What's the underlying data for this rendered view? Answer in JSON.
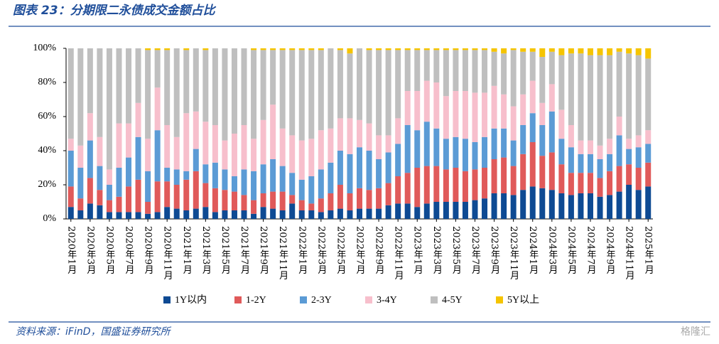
{
  "chart_data": {
    "type": "stacked_bar",
    "title": "图表 23：分期限二永债成交金额占比",
    "source": "资料来源：iFinD，国盛证券研究所",
    "watermark": "格隆汇",
    "categories": [
      "2020年1月",
      null,
      "2020年3月",
      null,
      "2020年5月",
      null,
      "2020年7月",
      null,
      "2020年9月",
      null,
      "2020年11月",
      null,
      "2021年1月",
      null,
      "2021年3月",
      null,
      "2021年5月",
      null,
      "2021年7月",
      null,
      "2021年9月",
      null,
      "2021年11月",
      null,
      "2022年1月",
      null,
      "2022年3月",
      null,
      "2022年5月",
      null,
      "2022年7月",
      null,
      "2022年9月",
      null,
      "2022年11月",
      null,
      "2023年1月",
      null,
      "2023年3月",
      null,
      "2023年5月",
      null,
      "2023年7月",
      null,
      "2023年9月",
      null,
      "2023年11月",
      null,
      "2024年1月",
      null,
      "2024年3月",
      null,
      "2024年5月",
      null,
      "2024年7月",
      null,
      "2024年9月",
      null,
      "2024年11月",
      null,
      "2025年1月"
    ],
    "ylim": [
      0,
      100
    ],
    "yticks": [
      {
        "value": 0,
        "label": "0%"
      },
      {
        "value": 20,
        "label": "20%"
      },
      {
        "value": 40,
        "label": "40%"
      },
      {
        "value": 60,
        "label": "60%"
      },
      {
        "value": 80,
        "label": "80%"
      },
      {
        "value": 100,
        "label": "100%"
      }
    ],
    "legend": "bottom",
    "series": [
      {
        "name": "1Y以内",
        "color": "#0e4a93",
        "values": [
          7,
          5,
          9,
          8,
          4,
          4,
          4,
          4,
          3,
          4,
          7,
          6,
          5,
          6,
          7,
          4,
          5,
          5,
          5,
          3,
          7,
          6,
          5,
          9,
          5,
          5,
          4,
          5,
          6,
          5,
          6,
          6,
          6,
          8,
          9,
          9,
          7,
          9,
          10,
          10,
          10,
          10,
          11,
          12,
          15,
          15,
          14,
          17,
          19,
          18,
          17,
          15,
          14,
          15,
          15,
          13,
          14,
          16,
          20,
          17,
          19
        ]
      },
      {
        "name": "1-2Y",
        "color": "#e05a5a",
        "values": [
          12,
          7,
          15,
          9,
          7,
          9,
          15,
          19,
          7,
          18,
          15,
          14,
          18,
          22,
          14,
          14,
          12,
          11,
          9,
          8,
          8,
          10,
          11,
          5,
          6,
          4,
          8,
          10,
          14,
          10,
          12,
          11,
          12,
          13,
          16,
          18,
          23,
          22,
          21,
          19,
          20,
          18,
          18,
          18,
          20,
          21,
          17,
          21,
          26,
          19,
          22,
          17,
          13,
          12,
          12,
          11,
          14,
          15,
          12,
          13,
          14
        ]
      },
      {
        "name": "2-3Y",
        "color": "#5b9bd5",
        "values": [
          21,
          18,
          22,
          14,
          9,
          17,
          17,
          25,
          18,
          30,
          8,
          9,
          5,
          13,
          11,
          15,
          12,
          9,
          15,
          17,
          17,
          19,
          15,
          13,
          12,
          16,
          17,
          18,
          20,
          23,
          24,
          23,
          17,
          18,
          19,
          28,
          22,
          26,
          22,
          18,
          18,
          19,
          16,
          18,
          18,
          17,
          15,
          17,
          17,
          18,
          24,
          15,
          15,
          11,
          11,
          11,
          10,
          18,
          9,
          12,
          11
        ]
      },
      {
        "name": "3-4Y",
        "color": "#f7bfcc",
        "values": [
          7,
          13,
          16,
          17,
          9,
          26,
          20,
          20,
          19,
          25,
          25,
          19,
          34,
          22,
          25,
          22,
          17,
          25,
          26,
          19,
          26,
          32,
          22,
          22,
          23,
          22,
          23,
          20,
          19,
          21,
          16,
          16,
          14,
          10,
          15,
          20,
          23,
          24,
          27,
          25,
          27,
          28,
          29,
          26,
          25,
          20,
          20,
          18,
          19,
          13,
          16,
          17,
          13,
          8,
          8,
          8,
          9,
          11,
          6,
          7,
          8
        ]
      },
      {
        "name": "4-5Y",
        "color": "#bfbfbf",
        "values": [
          53,
          57,
          38,
          52,
          71,
          44,
          44,
          32,
          52,
          22,
          44,
          52,
          37,
          37,
          42,
          45,
          54,
          50,
          45,
          52,
          41,
          32,
          46,
          50,
          53,
          52,
          47,
          47,
          40,
          38,
          42,
          43,
          50,
          50,
          40,
          24,
          24,
          18,
          19,
          27,
          24,
          24,
          25,
          25,
          20,
          24,
          33,
          25,
          17,
          27,
          19,
          32,
          42,
          51,
          50,
          53,
          49,
          38,
          50,
          47,
          42
        ]
      },
      {
        "name": "5Y以上",
        "color": "#f5c400",
        "values": [
          0,
          0,
          0,
          0,
          0,
          0,
          0,
          0,
          1,
          1,
          1,
          0,
          1,
          0,
          1,
          0,
          0,
          0,
          0,
          1,
          1,
          1,
          1,
          1,
          1,
          1,
          1,
          0,
          1,
          3,
          0,
          1,
          1,
          1,
          1,
          1,
          1,
          1,
          1,
          1,
          1,
          1,
          1,
          1,
          2,
          3,
          1,
          2,
          2,
          5,
          2,
          4,
          3,
          3,
          4,
          4,
          4,
          2,
          3,
          4,
          6
        ]
      }
    ]
  }
}
